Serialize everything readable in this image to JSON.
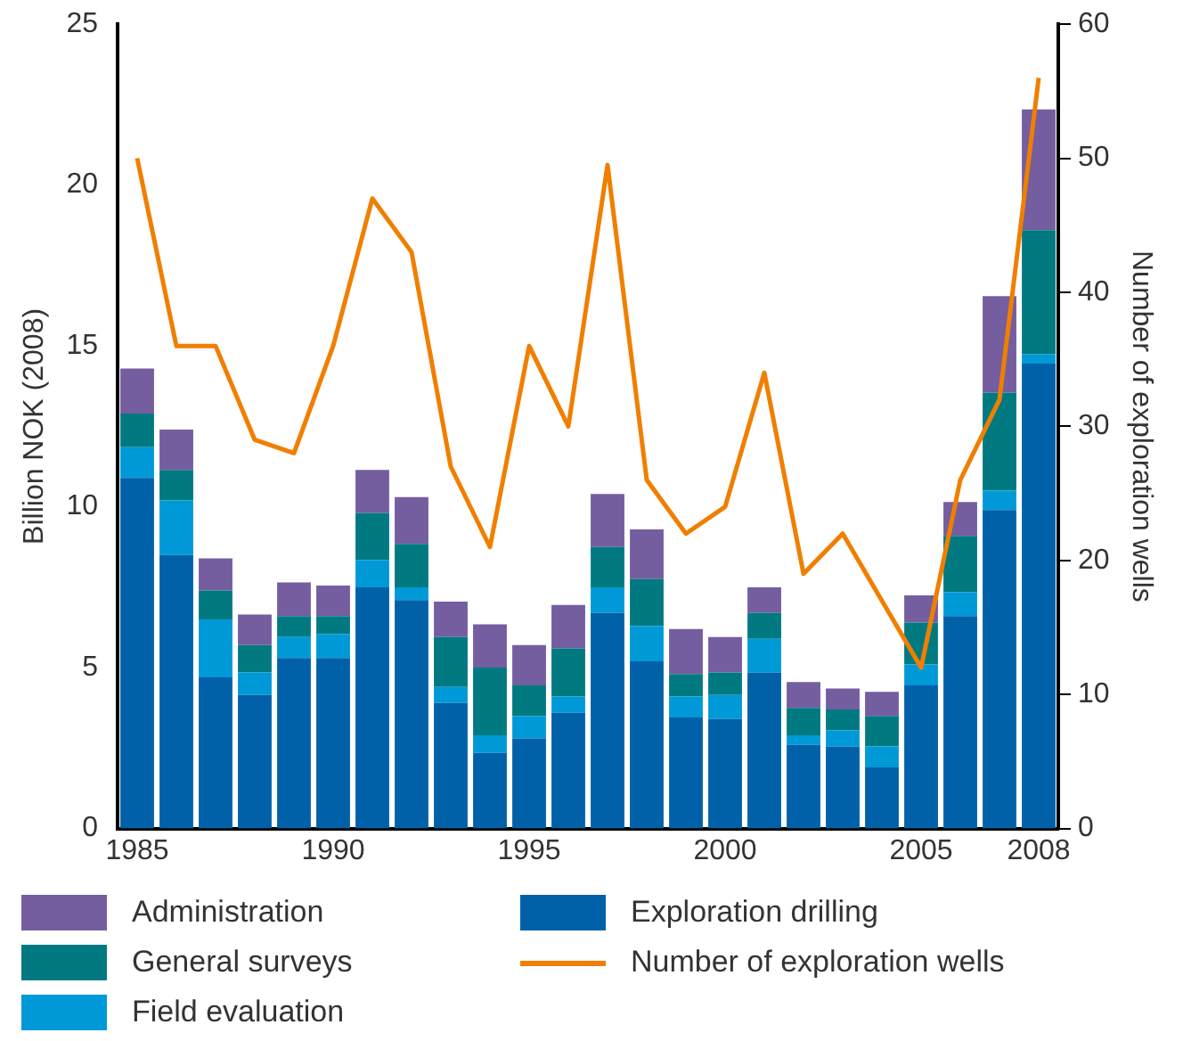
{
  "chart_data": {
    "type": "bar",
    "stacked": true,
    "ylabel": "Billion NOK (2008)",
    "y2label": "Number of exploration wells",
    "categories": [
      "1985",
      null,
      null,
      null,
      null,
      "1990",
      null,
      null,
      null,
      null,
      "1995",
      null,
      null,
      null,
      null,
      "2000",
      null,
      null,
      null,
      null,
      "2005",
      null,
      null,
      "2008"
    ],
    "series": [
      {
        "name": "Exploration drilling",
        "color": "#0061a8",
        "values": [
          10.9,
          8.5,
          4.7,
          4.15,
          5.3,
          5.3,
          7.5,
          7.1,
          3.9,
          2.35,
          2.8,
          3.6,
          6.7,
          5.2,
          3.45,
          3.4,
          4.85,
          2.6,
          2.55,
          1.9,
          4.45,
          6.6,
          9.9,
          14.45
        ]
      },
      {
        "name": "Field evaluation",
        "color": "#0099d8",
        "values": [
          0.95,
          1.7,
          1.8,
          0.7,
          0.65,
          0.75,
          0.85,
          0.4,
          0.5,
          0.55,
          0.7,
          0.5,
          0.8,
          1.1,
          0.65,
          0.75,
          1.05,
          0.3,
          0.5,
          0.65,
          0.65,
          0.75,
          0.6,
          0.3
        ]
      },
      {
        "name": "General surveys",
        "color": "#007a80",
        "values": [
          1.05,
          0.95,
          0.9,
          0.85,
          0.65,
          0.55,
          1.45,
          1.35,
          1.55,
          2.1,
          0.95,
          1.5,
          1.25,
          1.45,
          0.7,
          0.7,
          0.8,
          0.85,
          0.65,
          0.95,
          1.3,
          1.75,
          3.05,
          3.85
        ]
      },
      {
        "name": "Administration",
        "color": "#745ea0",
        "values": [
          1.4,
          1.25,
          1.0,
          0.95,
          1.05,
          0.95,
          1.35,
          1.45,
          1.1,
          1.35,
          1.25,
          1.35,
          1.65,
          1.55,
          1.4,
          1.1,
          0.8,
          0.8,
          0.65,
          0.75,
          0.85,
          1.05,
          3.0,
          3.75
        ]
      },
      {
        "name": "Number of exploration wells",
        "type": "line",
        "axis": "y2",
        "color": "#f07f00",
        "values": [
          50,
          36,
          36,
          29,
          28,
          36,
          47,
          43,
          27,
          21,
          36,
          30,
          49.5,
          26,
          22,
          24,
          34,
          19,
          22,
          17,
          12,
          26,
          32,
          56
        ]
      }
    ],
    "ylim": [
      0,
      25
    ],
    "yticks": [
      0,
      5,
      10,
      15,
      20,
      25
    ],
    "y2lim": [
      0,
      60
    ],
    "y2ticks": [
      0,
      10,
      20,
      30,
      40,
      50,
      60
    ],
    "grid": false,
    "legend": "bottom",
    "marker": "none"
  }
}
